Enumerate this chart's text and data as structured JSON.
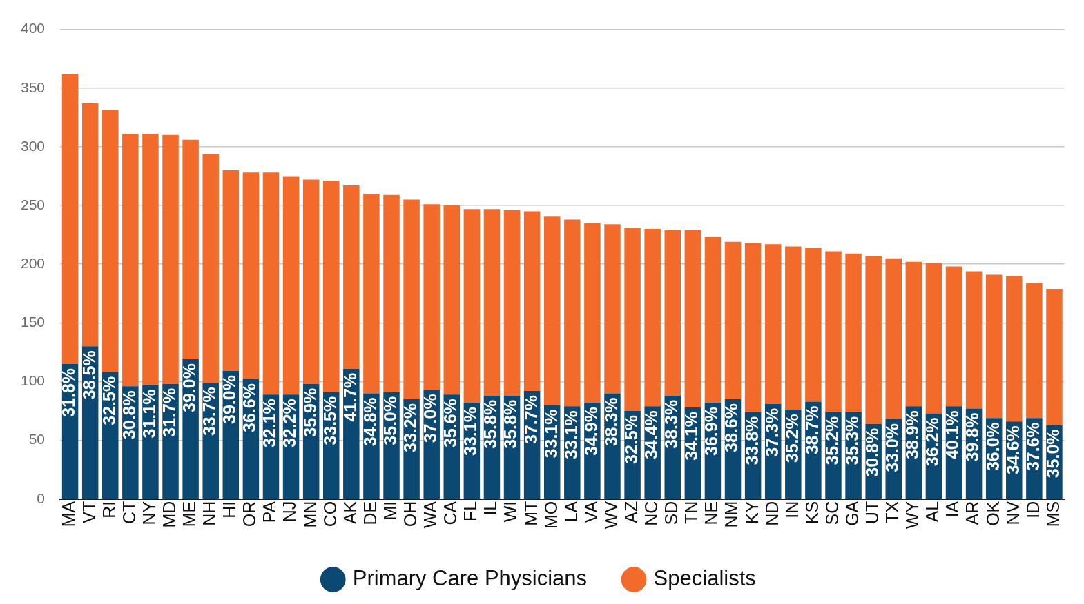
{
  "chart_data": {
    "type": "bar",
    "stacked": true,
    "categories": [
      "MA",
      "VT",
      "RI",
      "CT",
      "NY",
      "MD",
      "ME",
      "NH",
      "HI",
      "OR",
      "PA",
      "NJ",
      "MN",
      "CO",
      "AK",
      "DE",
      "MI",
      "OH",
      "WA",
      "CA",
      "FL",
      "IL",
      "WI",
      "MT",
      "MO",
      "LA",
      "VA",
      "WV",
      "AZ",
      "NC",
      "SD",
      "TN",
      "NE",
      "NM",
      "KY",
      "ND",
      "IN",
      "KS",
      "SC",
      "GA",
      "UT",
      "TX",
      "WY",
      "AL",
      "IA",
      "AR",
      "OK",
      "NV",
      "ID",
      "MS"
    ],
    "series": [
      {
        "name": "Primary Care Physicians",
        "color": "#0b4872",
        "values": [
          115,
          130,
          108,
          96,
          97,
          98,
          119,
          99,
          109,
          102,
          89,
          89,
          98,
          91,
          111,
          90,
          91,
          85,
          93,
          89,
          82,
          88,
          88,
          92,
          80,
          79,
          82,
          90,
          75,
          79,
          88,
          78,
          82,
          85,
          74,
          81,
          76,
          83,
          74,
          74,
          64,
          68,
          79,
          73,
          79,
          77,
          69,
          66,
          69,
          63
        ]
      },
      {
        "name": "Specialists",
        "color": "#f26b2b",
        "values": [
          247,
          207,
          223,
          215,
          214,
          212,
          187,
          195,
          171,
          176,
          189,
          186,
          174,
          180,
          156,
          170,
          168,
          170,
          158,
          161,
          165,
          159,
          158,
          153,
          161,
          159,
          153,
          144,
          156,
          151,
          141,
          151,
          141,
          134,
          144,
          136,
          139,
          131,
          137,
          135,
          143,
          137,
          123,
          128,
          119,
          117,
          122,
          124,
          115,
          116
        ]
      }
    ],
    "annotations": [
      {
        "text": "31.8%",
        "x": "MA",
        "y": 115
      },
      {
        "text": "38.5%",
        "x": "VT",
        "y": 130
      },
      {
        "text": "32.5%",
        "x": "RI",
        "y": 108
      },
      {
        "text": "30.8%",
        "x": "CT",
        "y": 96
      },
      {
        "text": "31.1%",
        "x": "NY",
        "y": 97
      },
      {
        "text": "31.7%",
        "x": "MD",
        "y": 98
      },
      {
        "text": "39.0%",
        "x": "ME",
        "y": 119
      },
      {
        "text": "33.7%",
        "x": "NH",
        "y": 99
      },
      {
        "text": "39.0%",
        "x": "HI",
        "y": 109
      },
      {
        "text": "36.6%",
        "x": "OR",
        "y": 102
      },
      {
        "text": "32.1%",
        "x": "PA",
        "y": 89
      },
      {
        "text": "32.2%",
        "x": "NJ",
        "y": 89
      },
      {
        "text": "35.9%",
        "x": "MN",
        "y": 98
      },
      {
        "text": "33.5%",
        "x": "CO",
        "y": 91
      },
      {
        "text": "41.7%",
        "x": "AK",
        "y": 111
      },
      {
        "text": "34.8%",
        "x": "DE",
        "y": 90
      },
      {
        "text": "35.0%",
        "x": "MI",
        "y": 91
      },
      {
        "text": "33.2%",
        "x": "OH",
        "y": 85
      },
      {
        "text": "37.0%",
        "x": "WA",
        "y": 93
      },
      {
        "text": "35.6%",
        "x": "CA",
        "y": 89
      },
      {
        "text": "33.1%",
        "x": "FL",
        "y": 82
      },
      {
        "text": "35.8%",
        "x": "IL",
        "y": 88
      },
      {
        "text": "35.8%",
        "x": "WI",
        "y": 88
      },
      {
        "text": "37.7%",
        "x": "MT",
        "y": 92
      },
      {
        "text": "33.1%",
        "x": "MO",
        "y": 80
      },
      {
        "text": "33.1%",
        "x": "LA",
        "y": 79
      },
      {
        "text": "34.9%",
        "x": "VA",
        "y": 82
      },
      {
        "text": "38.3%",
        "x": "WV",
        "y": 90
      },
      {
        "text": "32.5%",
        "x": "AZ",
        "y": 75
      },
      {
        "text": "34.4%",
        "x": "NC",
        "y": 79
      },
      {
        "text": "38.3%",
        "x": "SD",
        "y": 88
      },
      {
        "text": "34.1%",
        "x": "TN",
        "y": 78
      },
      {
        "text": "36.9%",
        "x": "NE",
        "y": 82
      },
      {
        "text": "38.6%",
        "x": "NM",
        "y": 85
      },
      {
        "text": "33.8%",
        "x": "KY",
        "y": 74
      },
      {
        "text": "37.3%",
        "x": "ND",
        "y": 81
      },
      {
        "text": "35.2%",
        "x": "IN",
        "y": 76
      },
      {
        "text": "38.7%",
        "x": "KS",
        "y": 83
      },
      {
        "text": "35.2%",
        "x": "SC",
        "y": 74
      },
      {
        "text": "35.3%",
        "x": "GA",
        "y": 74
      },
      {
        "text": "30.8%",
        "x": "UT",
        "y": 64
      },
      {
        "text": "33.0%",
        "x": "TX",
        "y": 68
      },
      {
        "text": "38.9%",
        "x": "WY",
        "y": 79
      },
      {
        "text": "36.2%",
        "x": "AL",
        "y": 73
      },
      {
        "text": "40.1%",
        "x": "IA",
        "y": 79
      },
      {
        "text": "39.8%",
        "x": "AR",
        "y": 77
      },
      {
        "text": "36.0%",
        "x": "OK",
        "y": 69
      },
      {
        "text": "34.6%",
        "x": "NV",
        "y": 66
      },
      {
        "text": "37.6%",
        "x": "ID",
        "y": 69
      },
      {
        "text": "35.0%",
        "x": "MS",
        "y": 63
      }
    ],
    "ylim": [
      0,
      400
    ],
    "yticks": [
      0,
      50,
      100,
      150,
      200,
      250,
      300,
      350,
      400
    ],
    "grid": "y",
    "legend": "bottom"
  }
}
